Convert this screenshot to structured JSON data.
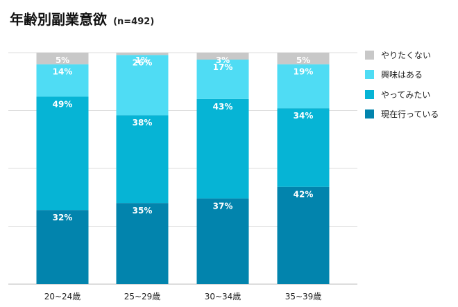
{
  "chart_data": {
    "type": "bar",
    "stacked": true,
    "percent": true,
    "title": "年齢別副業意欲",
    "subtitle": "(n=492)",
    "categories": [
      "20~24歳",
      "25~29歳",
      "30~34歳",
      "35~39歳"
    ],
    "series": [
      {
        "name": "現在行っている",
        "color": "#0284ad",
        "values": [
          32,
          35,
          37,
          42
        ]
      },
      {
        "name": "やってみたい",
        "color": "#06b4d5",
        "values": [
          49,
          38,
          43,
          34
        ]
      },
      {
        "name": "興味はある",
        "color": "#4fdcf4",
        "values": [
          14,
          26,
          17,
          19
        ]
      },
      {
        "name": "やりたくない",
        "color": "#c8c8c8",
        "values": [
          5,
          1,
          3,
          5
        ]
      }
    ],
    "legend_order": [
      "やりたくない",
      "興味はある",
      "やってみたい",
      "現在行っている"
    ],
    "ylim": [
      0,
      100
    ],
    "gridlines": true,
    "legend_position": "right",
    "xlabel": "",
    "ylabel": ""
  }
}
